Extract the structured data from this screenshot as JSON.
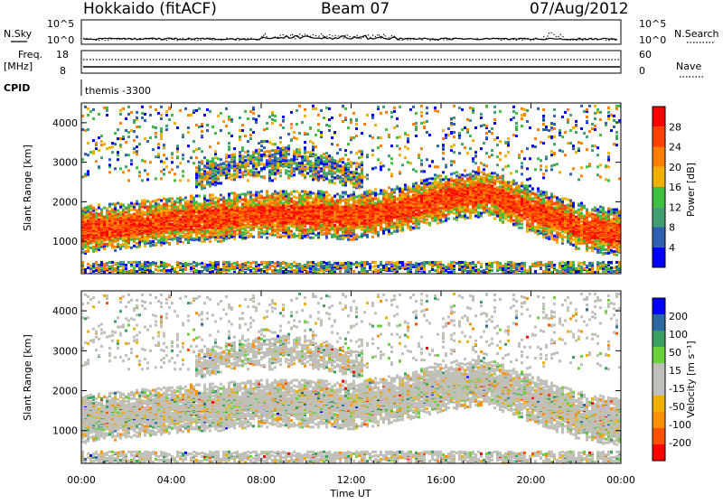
{
  "header": {
    "station": "Hokkaido (fitACF)",
    "beam": "Beam 07",
    "date": "07/Aug/2012"
  },
  "noise_panel": {
    "left_label": "N.Sky",
    "right_label": "N.Search",
    "left_ticks": [
      "10^5",
      "10^0"
    ],
    "right_ticks": [
      "10^5",
      "10^0"
    ]
  },
  "freq_panel": {
    "left_label_1": "Freq.",
    "left_label_2": "[MHz]",
    "right_label": "Nave",
    "left_ticks": [
      "18",
      "8"
    ],
    "right_ticks": [
      "60",
      "0"
    ]
  },
  "cpid_panel": {
    "label": "CPID",
    "program": "themis -3300"
  },
  "colors": {
    "power_scale": [
      "#0000ff",
      "#2f5fb0",
      "#3f9f6f",
      "#3fbf3f",
      "#f0b000",
      "#ff8000",
      "#ff4000",
      "#ff0000"
    ],
    "velocity_scale": [
      "#ff0000",
      "#ff5000",
      "#ff9000",
      "#f0b000",
      "#c0c0b8",
      "#c0c0b8",
      "#6ad03c",
      "#3aa060",
      "#2a6aa0",
      "#0000ff"
    ]
  },
  "chart_data": [
    {
      "type": "heatmap",
      "panel": "power",
      "ylabel": "Slant Range [km]",
      "ylim": [
        180,
        4500
      ],
      "yticks": [
        1000,
        2000,
        3000,
        4000
      ],
      "xlim_hours": [
        0,
        24
      ],
      "colorbar_label": "Power [dB]",
      "colorbar_ticks": [
        4,
        8,
        12,
        16,
        20,
        24,
        28
      ],
      "colorbar_range": [
        0,
        32
      ],
      "bands": [
        {
          "description": "main echo band",
          "x_hours": [
            0,
            2,
            4,
            6,
            8,
            10,
            12,
            14,
            16,
            18,
            20,
            22,
            24
          ],
          "y_km": [
            1250,
            1350,
            1500,
            1550,
            1650,
            1650,
            1600,
            1750,
            2050,
            2200,
            1750,
            1350,
            1150
          ]
        },
        {
          "description": "upper echo band",
          "x_hours": [
            5,
            7,
            9,
            11,
            12.5
          ],
          "y_km": [
            2600,
            2900,
            3000,
            2800,
            2600
          ]
        }
      ]
    },
    {
      "type": "heatmap",
      "panel": "velocity",
      "ylabel": "Slant Range [km]",
      "ylim": [
        180,
        4500
      ],
      "yticks": [
        1000,
        2000,
        3000,
        4000
      ],
      "xlim_hours": [
        0,
        24
      ],
      "colorbar_label": "Velocity [m s⁻¹]",
      "colorbar_ticks": [
        -200,
        -100,
        -50,
        -15,
        15,
        50,
        100,
        200
      ],
      "xticks": [
        "00:00",
        "04:00",
        "08:00",
        "12:00",
        "16:00",
        "20:00",
        "00:00"
      ],
      "xlabel": "Time UT"
    }
  ]
}
